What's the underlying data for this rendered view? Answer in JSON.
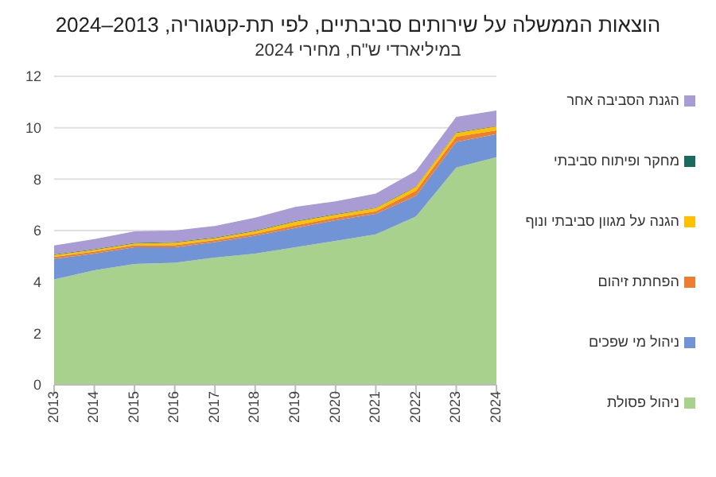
{
  "chart_data": {
    "type": "area",
    "stacked": true,
    "title": "הוצאות הממשלה על שירותים סביבתיים, לפי תת-קטגוריה, 2013–2024",
    "subtitle": "במיליארדי ש\"ח, מחירי 2024",
    "categories": [
      "2013",
      "2014",
      "2015",
      "2016",
      "2017",
      "2018",
      "2019",
      "2020",
      "2021",
      "2022",
      "2023",
      "2024"
    ],
    "series": [
      {
        "name": "ניהול פסולת",
        "color": "#a9d18e",
        "values": [
          4.1,
          4.45,
          4.7,
          4.75,
          4.95,
          5.1,
          5.35,
          5.6,
          5.85,
          6.55,
          8.45,
          8.85
        ]
      },
      {
        "name": "ניהול מי שפכים",
        "color": "#7094d6",
        "values": [
          0.8,
          0.65,
          0.65,
          0.6,
          0.6,
          0.7,
          0.75,
          0.8,
          0.8,
          0.8,
          1.0,
          0.9
        ]
      },
      {
        "name": "הפחתת זיהום",
        "color": "#ed7d31",
        "values": [
          0.08,
          0.08,
          0.08,
          0.08,
          0.08,
          0.08,
          0.1,
          0.1,
          0.1,
          0.2,
          0.2,
          0.15
        ]
      },
      {
        "name": "הגנה על מגוון סביבתי ונוף",
        "color": "#ffc000",
        "values": [
          0.07,
          0.07,
          0.07,
          0.1,
          0.08,
          0.1,
          0.15,
          0.12,
          0.12,
          0.15,
          0.15,
          0.15
        ]
      },
      {
        "name": "מחקר ופיתוח סביבתי",
        "color": "#1a6b5e",
        "values": [
          0.02,
          0.02,
          0.02,
          0.02,
          0.02,
          0.02,
          0.02,
          0.02,
          0.02,
          0.02,
          0.02,
          0.02
        ]
      },
      {
        "name": "הגנת הסביבה אחר",
        "color": "#a99bd3",
        "values": [
          0.35,
          0.4,
          0.45,
          0.45,
          0.45,
          0.5,
          0.55,
          0.5,
          0.55,
          0.6,
          0.6,
          0.6
        ]
      }
    ],
    "ylim": [
      0,
      12
    ],
    "yticks": [
      0,
      2,
      4,
      6,
      8,
      10,
      12
    ],
    "grid": "y",
    "legend": "right"
  }
}
